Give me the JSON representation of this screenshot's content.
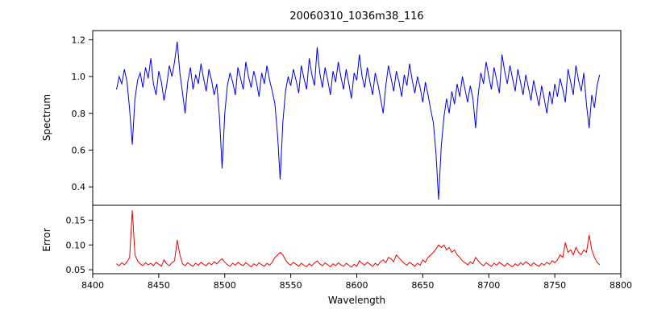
{
  "title": "20060310_1036m38_116",
  "x_axis": {
    "label": "Wavelength",
    "xlim": [
      8400,
      8800
    ],
    "ticks": [
      8400,
      8450,
      8500,
      8550,
      8600,
      8650,
      8700,
      8750,
      8800
    ],
    "tick_labels": [
      "8400",
      "8450",
      "8500",
      "8550",
      "8600",
      "8650",
      "8700",
      "8750",
      "8800"
    ]
  },
  "chart_data": [
    {
      "type": "line",
      "name": "spectrum",
      "ylabel": "Spectrum",
      "color": "#0000ee",
      "ylim": [
        0.3,
        1.25
      ],
      "y_ticks": [
        0.4,
        0.6,
        0.8,
        1.0,
        1.2
      ],
      "y_tick_labels": [
        "0.4",
        "0.6",
        "0.8",
        "1.0",
        "1.2"
      ],
      "x_start": 8418,
      "x_step": 2,
      "values": [
        0.93,
        1.0,
        0.96,
        1.04,
        0.97,
        0.82,
        0.63,
        0.88,
        0.98,
        1.02,
        0.94,
        1.05,
        0.99,
        1.1,
        0.96,
        0.9,
        1.03,
        0.97,
        0.87,
        0.95,
        1.06,
        1.0,
        1.08,
        1.19,
        1.02,
        0.91,
        0.8,
        0.97,
        1.05,
        0.93,
        1.01,
        0.96,
        1.07,
        0.99,
        0.92,
        1.04,
        0.98,
        0.9,
        0.96,
        0.78,
        0.5,
        0.8,
        0.95,
        1.02,
        0.97,
        0.9,
        1.05,
        0.99,
        0.93,
        1.08,
        1.0,
        0.94,
        1.03,
        0.97,
        0.89,
        1.02,
        0.96,
        1.06,
        0.98,
        0.92,
        0.85,
        0.68,
        0.44,
        0.75,
        0.92,
        1.0,
        0.95,
        1.04,
        0.98,
        0.91,
        1.06,
        0.99,
        0.93,
        1.1,
        1.01,
        0.95,
        1.16,
        1.02,
        0.94,
        1.05,
        0.98,
        0.9,
        1.03,
        0.97,
        1.08,
        1.0,
        0.93,
        1.04,
        0.96,
        0.88,
        1.02,
        0.98,
        1.12,
        1.0,
        0.94,
        1.05,
        0.97,
        0.9,
        1.02,
        0.96,
        0.88,
        0.8,
        0.95,
        1.06,
        0.99,
        0.92,
        1.03,
        0.97,
        0.89,
        1.01,
        0.95,
        1.07,
        0.98,
        0.91,
        1.0,
        0.94,
        0.86,
        0.97,
        0.9,
        0.82,
        0.75,
        0.58,
        0.33,
        0.62,
        0.78,
        0.88,
        0.8,
        0.92,
        0.85,
        0.96,
        0.89,
        1.0,
        0.93,
        0.86,
        0.95,
        0.88,
        0.72,
        0.9,
        1.02,
        0.96,
        1.08,
        1.0,
        0.93,
        1.05,
        0.98,
        0.91,
        1.12,
        1.03,
        0.96,
        1.06,
        0.99,
        0.92,
        1.04,
        0.97,
        0.9,
        1.01,
        0.94,
        0.87,
        0.98,
        0.91,
        0.84,
        0.95,
        0.88,
        0.8,
        0.92,
        0.85,
        0.96,
        0.89,
        0.99,
        0.93,
        0.86,
        1.04,
        0.97,
        0.9,
        1.06,
        0.98,
        0.92,
        1.02,
        0.85,
        0.72,
        0.9,
        0.83,
        0.95,
        1.01
      ]
    },
    {
      "type": "line",
      "name": "error",
      "ylabel": "Error",
      "color": "#ee0000",
      "ylim": [
        0.042,
        0.18
      ],
      "y_ticks": [
        0.05,
        0.1,
        0.15
      ],
      "y_tick_labels": [
        "0.05",
        "0.10",
        "0.15"
      ],
      "x_start": 8418,
      "x_step": 2,
      "values": [
        0.062,
        0.058,
        0.064,
        0.06,
        0.066,
        0.075,
        0.17,
        0.08,
        0.068,
        0.062,
        0.058,
        0.064,
        0.06,
        0.063,
        0.058,
        0.065,
        0.061,
        0.057,
        0.07,
        0.062,
        0.058,
        0.064,
        0.068,
        0.11,
        0.08,
        0.062,
        0.058,
        0.064,
        0.06,
        0.057,
        0.063,
        0.059,
        0.065,
        0.061,
        0.058,
        0.064,
        0.06,
        0.066,
        0.062,
        0.068,
        0.072,
        0.065,
        0.06,
        0.057,
        0.063,
        0.059,
        0.065,
        0.061,
        0.058,
        0.064,
        0.06,
        0.056,
        0.062,
        0.058,
        0.064,
        0.06,
        0.057,
        0.063,
        0.059,
        0.065,
        0.075,
        0.08,
        0.085,
        0.08,
        0.07,
        0.063,
        0.059,
        0.065,
        0.061,
        0.057,
        0.063,
        0.059,
        0.056,
        0.062,
        0.058,
        0.064,
        0.068,
        0.062,
        0.058,
        0.064,
        0.06,
        0.056,
        0.062,
        0.058,
        0.064,
        0.06,
        0.057,
        0.063,
        0.059,
        0.055,
        0.061,
        0.057,
        0.068,
        0.063,
        0.059,
        0.065,
        0.061,
        0.057,
        0.063,
        0.059,
        0.066,
        0.07,
        0.064,
        0.075,
        0.072,
        0.066,
        0.08,
        0.074,
        0.068,
        0.063,
        0.059,
        0.065,
        0.061,
        0.057,
        0.063,
        0.059,
        0.07,
        0.065,
        0.075,
        0.08,
        0.085,
        0.092,
        0.1,
        0.095,
        0.1,
        0.09,
        0.095,
        0.085,
        0.09,
        0.08,
        0.075,
        0.068,
        0.064,
        0.06,
        0.066,
        0.062,
        0.075,
        0.068,
        0.062,
        0.058,
        0.064,
        0.06,
        0.057,
        0.063,
        0.059,
        0.065,
        0.061,
        0.057,
        0.063,
        0.059,
        0.056,
        0.062,
        0.058,
        0.064,
        0.06,
        0.066,
        0.062,
        0.058,
        0.064,
        0.06,
        0.057,
        0.063,
        0.059,
        0.065,
        0.061,
        0.068,
        0.064,
        0.07,
        0.08,
        0.075,
        0.105,
        0.085,
        0.09,
        0.08,
        0.095,
        0.085,
        0.08,
        0.09,
        0.085,
        0.12,
        0.09,
        0.075,
        0.065,
        0.06
      ]
    }
  ]
}
